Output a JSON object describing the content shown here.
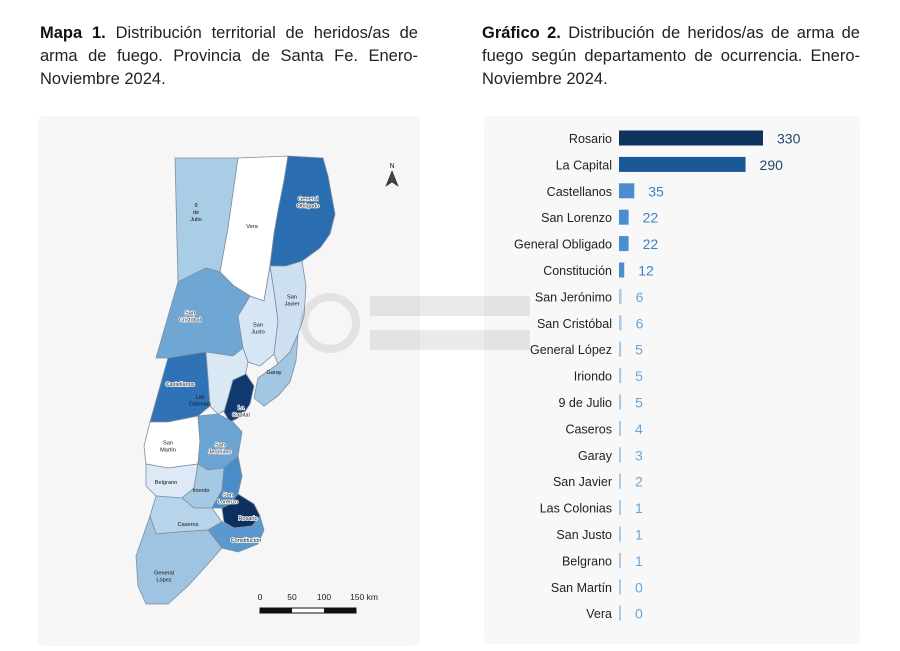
{
  "map_caption": {
    "label": "Mapa 1.",
    "text": "Distribución territorial de heridos/as de arma de fuego. Provincia de Santa Fe. Enero-Noviembre 2024."
  },
  "chart_caption": {
    "label": "Gráfico 2.",
    "text": "Distribución de heridos/as de arma de fuego según departamento de ocurrencia. Enero-Noviembre 2024."
  },
  "map": {
    "north_label": "N",
    "scale_labels": [
      "0",
      "50",
      "100",
      "150 km"
    ],
    "regions": [
      {
        "name": "9 de Julio",
        "label_lines": [
          "9",
          "de",
          "Julio"
        ],
        "color": "#a9cde5"
      },
      {
        "name": "Vera",
        "label_lines": [
          "Vera"
        ],
        "color": "#ffffff"
      },
      {
        "name": "General Obligado",
        "label_lines": [
          "General",
          "Obligado"
        ],
        "color": "#2a6db0"
      },
      {
        "name": "San Cristóbal",
        "label_lines": [
          "San",
          "Cristóbal"
        ],
        "color": "#6fa6d3"
      },
      {
        "name": "San Justo",
        "label_lines": [
          "San",
          "Justo"
        ],
        "color": "#d6e6f4"
      },
      {
        "name": "San Javier",
        "label_lines": [
          "San",
          "Javier"
        ],
        "color": "#cde0f1"
      },
      {
        "name": "Castellanos",
        "label_lines": [
          "Castellanos"
        ],
        "color": "#2f72b6"
      },
      {
        "name": "Las Colonias",
        "label_lines": [
          "Las",
          "Colonias"
        ],
        "color": "#d9e8f5"
      },
      {
        "name": "La Capital",
        "label_lines": [
          "La",
          "Capital"
        ],
        "color": "#0f3a70"
      },
      {
        "name": "Garay",
        "label_lines": [
          "Garay"
        ],
        "color": "#a2c7e3"
      },
      {
        "name": "San Martín",
        "label_lines": [
          "San",
          "Martín"
        ],
        "color": "#ffffff"
      },
      {
        "name": "San Jerónimo",
        "label_lines": [
          "San",
          "Jerónimo"
        ],
        "color": "#6ba3d2"
      },
      {
        "name": "Belgrano",
        "label_lines": [
          "Belgrano"
        ],
        "color": "#dde9f6"
      },
      {
        "name": "Iriondo",
        "label_lines": [
          "Iriondo"
        ],
        "color": "#a5c9e4"
      },
      {
        "name": "San Lorenzo",
        "label_lines": [
          "San",
          "Lorenzo"
        ],
        "color": "#4a8cc7"
      },
      {
        "name": "Rosario",
        "label_lines": [
          "Rosario"
        ],
        "color": "#0d2f5e"
      },
      {
        "name": "Caseros",
        "label_lines": [
          "Caseros"
        ],
        "color": "#b7d4ea"
      },
      {
        "name": "Constitución",
        "label_lines": [
          "Constitución"
        ],
        "color": "#5a98cf"
      },
      {
        "name": "General López",
        "label_lines": [
          "General",
          "López"
        ],
        "color": "#9fc4e2"
      }
    ]
  },
  "chart_data": {
    "type": "bar",
    "orientation": "horizontal",
    "title": "",
    "xlabel": "",
    "ylabel": "",
    "xlim": [
      0,
      330
    ],
    "categories": [
      "Rosario",
      "La Capital",
      "Castellanos",
      "San Lorenzo",
      "General Obligado",
      "Constitución",
      "San Jerónimo",
      "San Cristóbal",
      "General López",
      "Iriondo",
      "9 de Julio",
      "Caseros",
      "Garay",
      "San Javier",
      "Las Colonias",
      "San Justo",
      "Belgrano",
      "San Martín",
      "Vera"
    ],
    "values": [
      330,
      290,
      35,
      22,
      22,
      12,
      6,
      6,
      5,
      5,
      5,
      4,
      3,
      2,
      1,
      1,
      1,
      0,
      0
    ],
    "value_labels": [
      "330",
      "290",
      "35",
      "22",
      "22",
      "12",
      "6",
      "6",
      "5",
      "5",
      "5",
      "4",
      "3",
      "2",
      "1",
      "1",
      "1",
      "0",
      "0"
    ],
    "bar_colors": [
      "#0e335f",
      "#1b5898",
      "#4a8ed0",
      "#4a8ed0",
      "#4a8ed0",
      "#4a8ed0",
      "#a9cbea",
      "#a9cbea",
      "#a9cbea",
      "#a9cbea",
      "#a9cbea",
      "#a9cbea",
      "#a9cbea",
      "#a9cbea",
      "#a9cbea",
      "#a9cbea",
      "#a9cbea",
      "#a9cbea",
      "#a9cbea"
    ],
    "label_colors": [
      "#23466f",
      "#23466f",
      "#3b82c4",
      "#3b82c4",
      "#3b82c4",
      "#3b82c4",
      "#6aa5d8",
      "#6aa5d8",
      "#6aa5d8",
      "#6aa5d8",
      "#6aa5d8",
      "#6aa5d8",
      "#6aa5d8",
      "#6aa5d8",
      "#6aa5d8",
      "#6aa5d8",
      "#6aa5d8",
      "#6aa5d8",
      "#6aa5d8"
    ],
    "grid": false,
    "legend": "none"
  }
}
